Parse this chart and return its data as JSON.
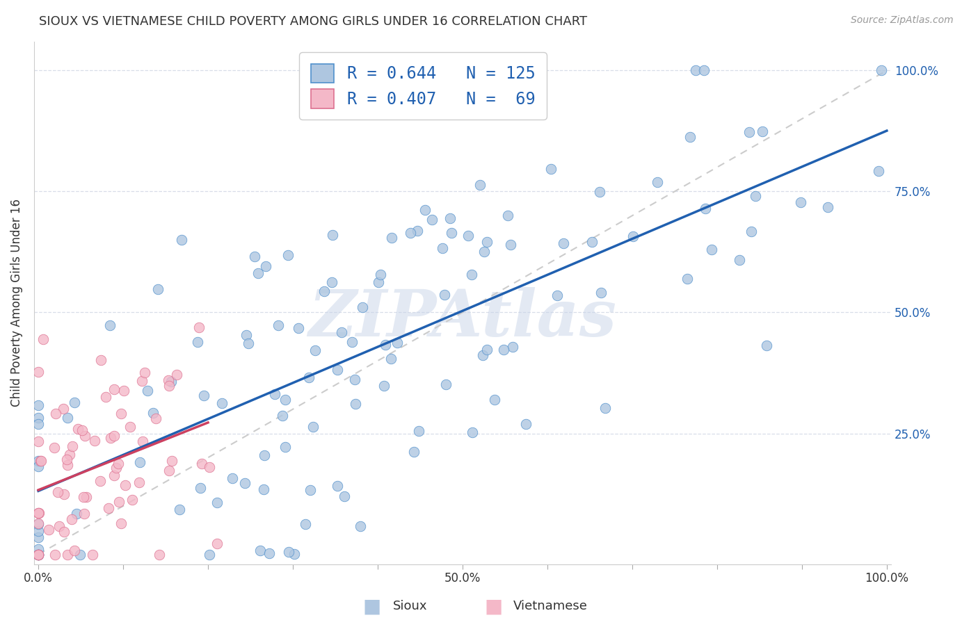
{
  "title": "SIOUX VS VIETNAMESE CHILD POVERTY AMONG GIRLS UNDER 16 CORRELATION CHART",
  "source": "Source: ZipAtlas.com",
  "ylabel": "Child Poverty Among Girls Under 16",
  "ytick_labels": [
    "25.0%",
    "50.0%",
    "75.0%",
    "100.0%"
  ],
  "ytick_positions": [
    0.25,
    0.5,
    0.75,
    1.0
  ],
  "sioux_color": "#aec6e0",
  "sioux_line_color": "#2060b0",
  "sioux_edge_color": "#5090cc",
  "viet_color": "#f4b8c8",
  "viet_line_color": "#cc4060",
  "viet_edge_color": "#dd7090",
  "diagonal_color": "#cccccc",
  "watermark": "ZIPAtlas",
  "background_color": "#ffffff",
  "grid_color": "#d8dde8",
  "sioux_R": 0.644,
  "sioux_N": 125,
  "viet_R": 0.407,
  "viet_N": 69,
  "legend_text_color": "#2060b0",
  "legend_label_color": "#333333",
  "title_color": "#333333",
  "source_color": "#999999",
  "axis_label_color": "#333333",
  "ytick_color": "#2060b0",
  "xtick_color": "#333333"
}
